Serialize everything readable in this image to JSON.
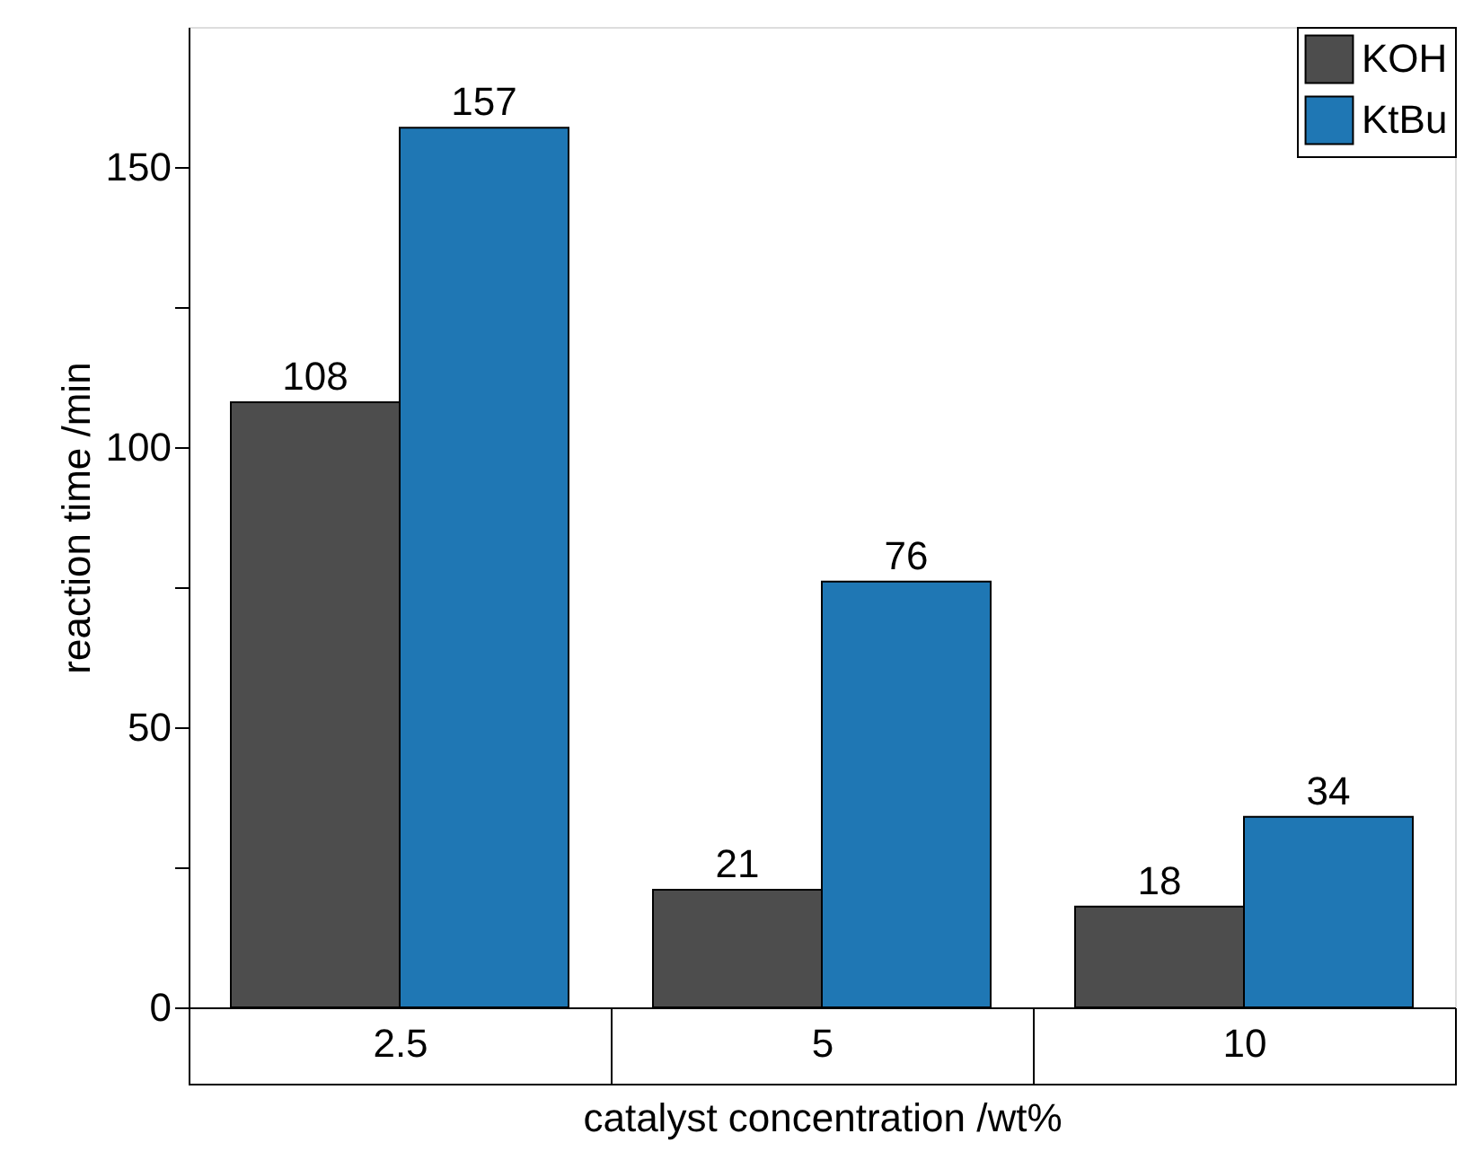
{
  "chart_data": {
    "type": "bar",
    "xlabel": "catalyst concentration /wt%",
    "ylabel": "reaction time /min",
    "categories": [
      "2.5",
      "5",
      "10"
    ],
    "series": [
      {
        "name": "KOH",
        "color": "#4d4d4d",
        "values": [
          108,
          21,
          18
        ]
      },
      {
        "name": "KtBu",
        "color": "#1f77b4",
        "values": [
          157,
          76,
          34
        ]
      }
    ],
    "ylim": [
      0,
      175
    ],
    "yticks": [
      0,
      {
        "value": 25,
        "label": null
      },
      50,
      {
        "value": 75,
        "label": null
      },
      100,
      {
        "value": 125,
        "label": null
      },
      150
    ],
    "data_labels": true,
    "legend": "top right",
    "grid": false
  }
}
